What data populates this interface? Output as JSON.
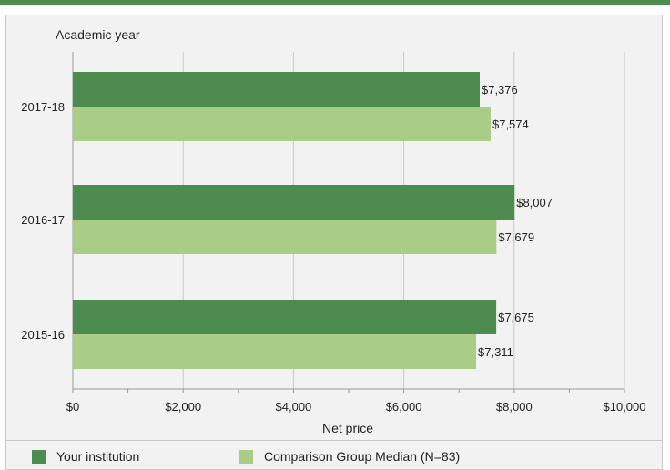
{
  "colors": {
    "top_bar": "#4e8b4e",
    "series_primary": "#4e8b4e",
    "series_secondary": "#a9cc87",
    "grid": "#c8c8c8",
    "text": "#222222"
  },
  "chart_data": {
    "type": "bar",
    "orientation": "horizontal",
    "title": "",
    "ylabel": "Academic year",
    "xlabel": "Net price",
    "categories": [
      "2017-18",
      "2016-17",
      "2015-16"
    ],
    "series": [
      {
        "name": "Your institution",
        "values": [
          7376,
          8007,
          7675
        ],
        "labels": [
          "$7,376",
          "$8,007",
          "$7,675"
        ]
      },
      {
        "name": "Comparison Group Median (N=83)",
        "values": [
          7574,
          7679,
          7311
        ],
        "labels": [
          "$7,574",
          "$7,679",
          "$7,311"
        ]
      }
    ],
    "xlim": [
      0,
      10000
    ],
    "xticks": [
      0,
      2000,
      4000,
      6000,
      8000,
      10000
    ],
    "xtick_labels": [
      "$0",
      "$2,000",
      "$4,000",
      "$6,000",
      "$8,000",
      "$10,000"
    ],
    "grid": true,
    "legend_position": "bottom"
  },
  "legend": {
    "items": [
      {
        "label": "Your institution"
      },
      {
        "label": "Comparison Group Median (N=83)"
      }
    ]
  }
}
